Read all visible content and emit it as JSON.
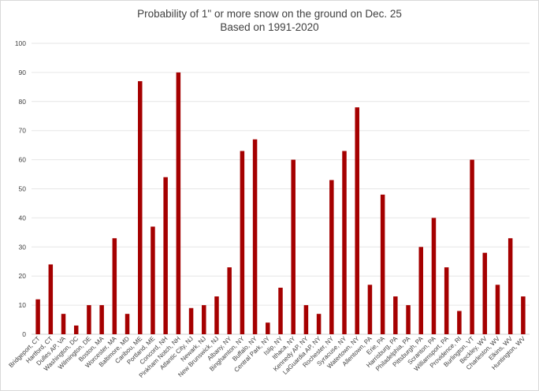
{
  "chart_data": {
    "type": "bar",
    "title": "Probability of 1\" or more snow on the ground on Dec. 25",
    "subtitle": "Based on 1991-2020",
    "xlabel": "",
    "ylabel": "",
    "ylim": [
      0,
      100
    ],
    "yticks": [
      0,
      10,
      20,
      30,
      40,
      50,
      60,
      70,
      80,
      90,
      100
    ],
    "grid": true,
    "legend": "none",
    "bar_color": "#a50000",
    "categories": [
      "Bridgeport, CT",
      "Hartford, CT",
      "Dulles AP, VA",
      "Washington, DC",
      "Wilmington, DE",
      "Boston, MA",
      "Worcester, MA",
      "Baltimore, MD",
      "Caribou, ME",
      "Portland, ME",
      "Concord, NH",
      "Pinkham Notch, NH",
      "Atlantic City, NJ",
      "Newark, NJ",
      "New Brunswick, NJ",
      "Albany, NY",
      "Binghamton, NY",
      "Buffalo, NY",
      "Central Park, NY",
      "Islip, NY",
      "Ithaca, NY",
      "Kennedy AP, NY",
      "LaGuardia AP, NY",
      "Rochester, NY",
      "Syracuse, NY",
      "Watertown, NY",
      "Allentown, PA",
      "Erie, PA",
      "Harrisburg, PA",
      "Philadelphia, PA",
      "Pittsburgh, PA",
      "Scranton, PA",
      "Williamsport, PA",
      "Providence, RI",
      "Burlington, VT",
      "Beckley, WV",
      "Charleston, WV",
      "Elkins, WV",
      "Huntington, WV"
    ],
    "values": [
      12,
      24,
      7,
      3,
      10,
      10,
      33,
      7,
      87,
      37,
      54,
      90,
      9,
      10,
      13,
      23,
      63,
      67,
      4,
      16,
      60,
      10,
      7,
      53,
      63,
      78,
      17,
      48,
      13,
      10,
      30,
      40,
      23,
      8,
      60,
      28,
      17,
      33,
      13
    ]
  }
}
